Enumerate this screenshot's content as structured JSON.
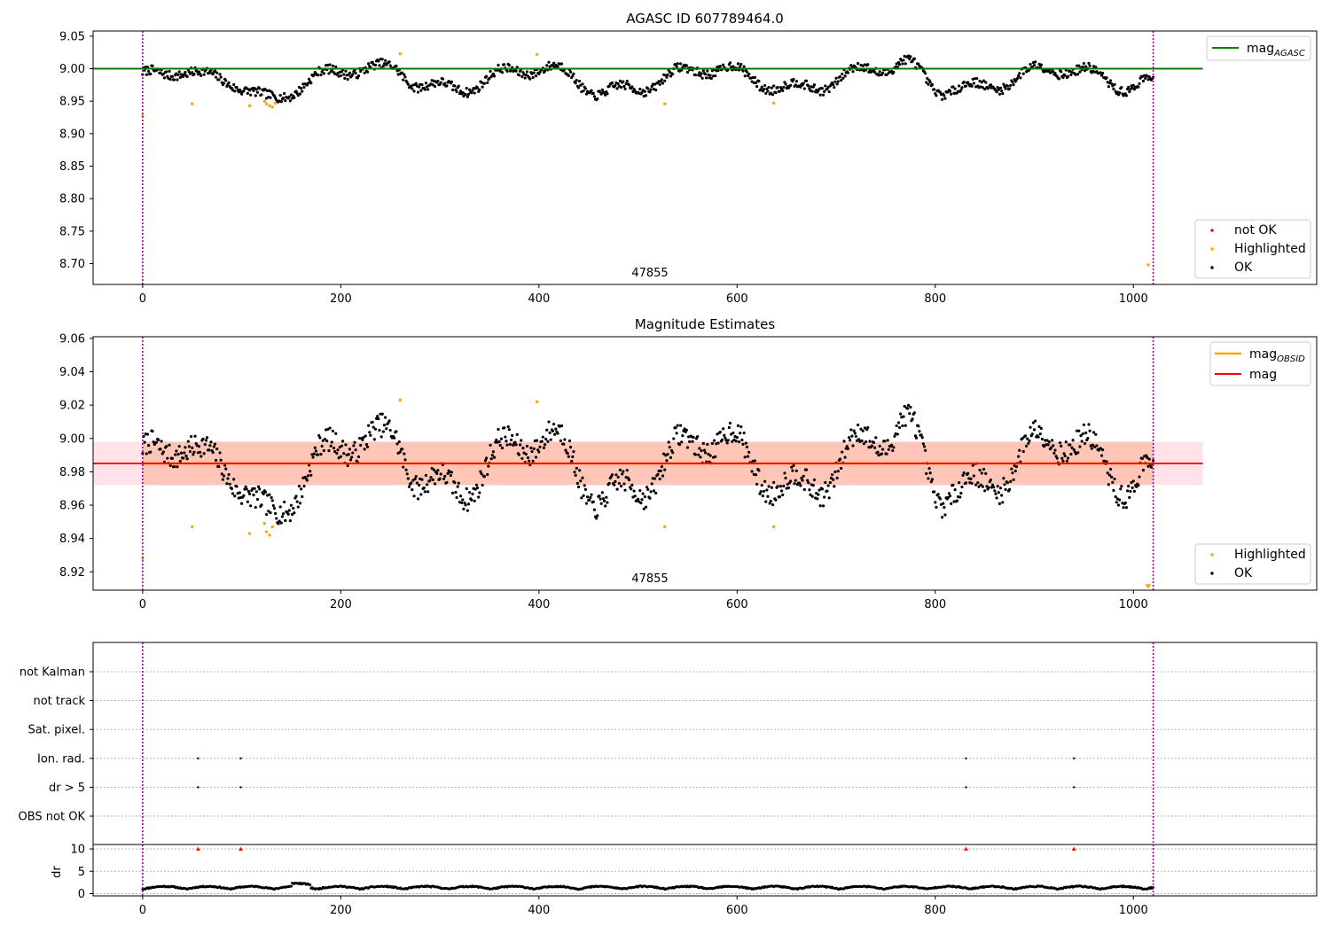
{
  "colors": {
    "ok": "#000000",
    "highlighted": "#ffa500",
    "not_ok": "#ff0000",
    "mag_agasc_line": "#008000",
    "mag_obsid_line": "#ffa500",
    "mag_line": "#ff0000",
    "obs_vline": "#800080",
    "band_mag": "#ffc0cb",
    "band_obsid": "#ffa07a"
  },
  "chart_data": [
    {
      "type": "scatter",
      "title": "AGASC ID 607789464.0",
      "xlim": [
        -50,
        1185
      ],
      "ylim": [
        8.668,
        9.058
      ],
      "xticks": [
        0,
        200,
        400,
        600,
        800,
        1000
      ],
      "yticks": [
        8.7,
        8.75,
        8.8,
        8.85,
        8.9,
        8.95,
        9.0,
        9.05
      ],
      "ytick_labels": [
        "8.70",
        "8.75",
        "8.80",
        "8.85",
        "8.90",
        "8.95",
        "9.00",
        "9.05"
      ],
      "obsid_label": "47855",
      "obsid_label_x": 510,
      "obs_boundaries": [
        0,
        1020
      ],
      "mag_agasc": 9.0,
      "mag_agasc_xrange": [
        -50,
        1070
      ],
      "legend_upper": {
        "position": "top-right",
        "entries": [
          {
            "label": "mag",
            "sub": "AGASC"
          }
        ]
      },
      "legend_lower": {
        "position": "bottom-right",
        "entries": [
          "not OK",
          "Highlighted",
          "OK"
        ]
      },
      "highlighted_points": [
        [
          0,
          8.928
        ],
        [
          50,
          8.946
        ],
        [
          108,
          8.943
        ],
        [
          123,
          8.95
        ],
        [
          125,
          8.946
        ],
        [
          128,
          8.943
        ],
        [
          131,
          8.941
        ],
        [
          134,
          8.947
        ],
        [
          260,
          9.023
        ],
        [
          398,
          9.022
        ],
        [
          527,
          8.946
        ],
        [
          637,
          8.947
        ],
        [
          1015,
          8.698
        ]
      ],
      "not_ok_points": [],
      "ok_series": {
        "n": 1020,
        "note": "ok magnitude samples 0-1020"
      }
    },
    {
      "type": "scatter",
      "title": "Magnitude Estimates",
      "xlim": [
        -50,
        1185
      ],
      "ylim": [
        8.909,
        9.061
      ],
      "xticks": [
        0,
        200,
        400,
        600,
        800,
        1000
      ],
      "yticks": [
        8.92,
        8.94,
        8.96,
        8.98,
        9.0,
        9.02,
        9.04,
        9.06
      ],
      "ytick_labels": [
        "8.92",
        "8.94",
        "8.96",
        "8.98",
        "9.00",
        "9.02",
        "9.04",
        "9.06"
      ],
      "obsid_label": "47855",
      "obsid_label_x": 510,
      "obs_boundaries": [
        0,
        1020
      ],
      "mag_obsid": 8.985,
      "mag": 8.985,
      "mag_band": [
        8.972,
        8.998
      ],
      "mag_band_xrange": [
        -50,
        1070
      ],
      "obsid_band": [
        8.972,
        8.998
      ],
      "obsid_band_xrange": [
        0,
        1020
      ],
      "legend_upper": {
        "position": "top-right",
        "entries": [
          {
            "label": "mag",
            "sub": "OBSID"
          },
          {
            "label": "mag",
            "sub": ""
          }
        ]
      },
      "legend_lower": {
        "position": "bottom-right",
        "entries": [
          "Highlighted",
          "OK"
        ]
      },
      "highlighted_points": [
        [
          0,
          8.928
        ],
        [
          50,
          8.947
        ],
        [
          108,
          8.943
        ],
        [
          123,
          8.949
        ],
        [
          125,
          8.944
        ],
        [
          128,
          8.942
        ],
        [
          131,
          8.947
        ],
        [
          260,
          9.023
        ],
        [
          398,
          9.022
        ],
        [
          527,
          8.947
        ],
        [
          637,
          8.947
        ]
      ],
      "low_marker": {
        "x": 1015,
        "y": 8.911
      }
    },
    {
      "type": "scatter",
      "title": "",
      "xlim": [
        -50,
        1185
      ],
      "xticks": [
        0,
        200,
        400,
        600,
        800,
        1000
      ],
      "flag_labels": [
        "not Kalman",
        "not track",
        "Sat. pixel.",
        "Ion. rad.",
        "dr > 5",
        "OBS not OK"
      ],
      "flag_points": {
        "Ion. rad.": [
          56,
          99,
          831,
          940
        ],
        "dr > 5": [
          56,
          99,
          831,
          940
        ]
      },
      "dr_ylim": [
        -0.5,
        11
      ],
      "dr_yticks": [
        0,
        5,
        10
      ],
      "dr_ylabel": "dr",
      "dr_high_points": [
        [
          56,
          10
        ],
        [
          99,
          10
        ],
        [
          831,
          10
        ],
        [
          940,
          10
        ]
      ],
      "obs_boundaries": [
        0,
        1020
      ]
    }
  ]
}
